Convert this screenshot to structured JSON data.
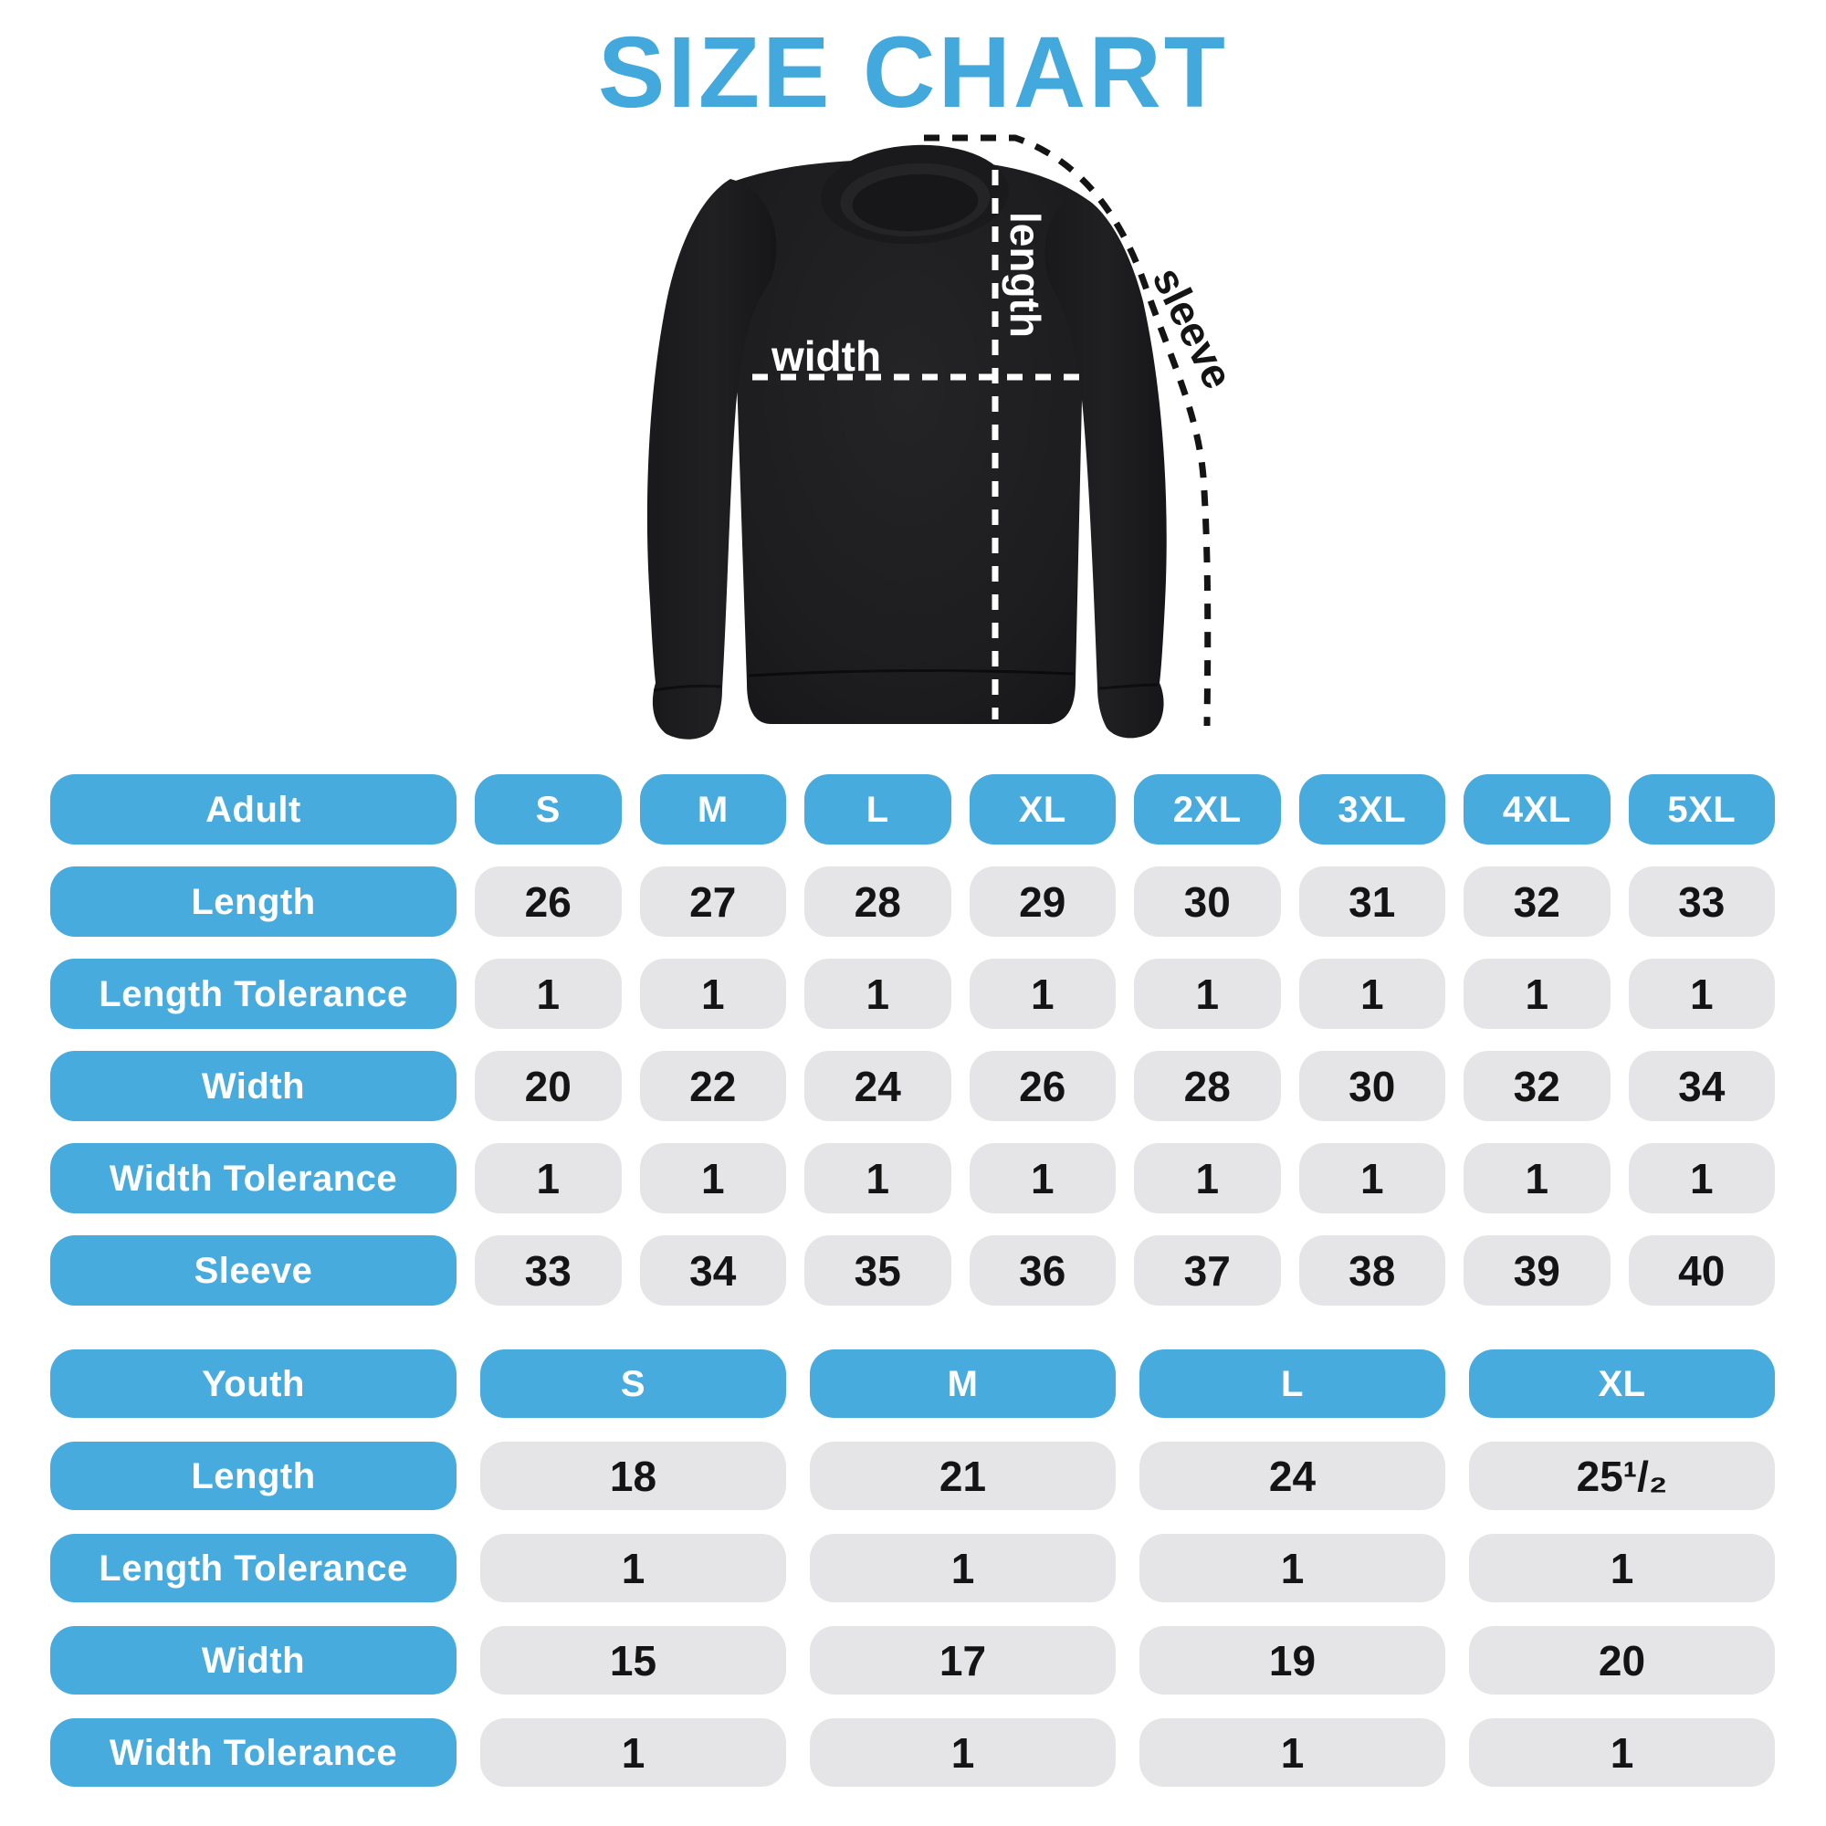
{
  "title": "SIZE CHART",
  "colors": {
    "blue": "#47ABDE",
    "title_blue": "#43A8DC",
    "gray": "#E5E5E7",
    "ink": "#141414",
    "garment_black": "#1D1D1F",
    "dash_white": "#FFFFFF",
    "dash_black": "#141414"
  },
  "garment": {
    "width_label": "width",
    "length_label": "length",
    "sleeve_label": "sleeve"
  },
  "tables": [
    {
      "id": "adult",
      "header": "Adult",
      "columns": [
        "S",
        "M",
        "L",
        "XL",
        "2XL",
        "3XL",
        "4XL",
        "5XL"
      ],
      "rows": [
        {
          "label": "Length",
          "values": [
            "26",
            "27",
            "28",
            "29",
            "30",
            "31",
            "32",
            "33"
          ]
        },
        {
          "label": "Length Tolerance",
          "values": [
            "1",
            "1",
            "1",
            "1",
            "1",
            "1",
            "1",
            "1"
          ]
        },
        {
          "label": "Width",
          "values": [
            "20",
            "22",
            "24",
            "26",
            "28",
            "30",
            "32",
            "34"
          ]
        },
        {
          "label": "Width Tolerance",
          "values": [
            "1",
            "1",
            "1",
            "1",
            "1",
            "1",
            "1",
            "1"
          ]
        },
        {
          "label": "Sleeve",
          "values": [
            "33",
            "34",
            "35",
            "36",
            "37",
            "38",
            "39",
            "40"
          ]
        }
      ]
    },
    {
      "id": "youth",
      "header": "Youth",
      "columns": [
        "S",
        "M",
        "L",
        "XL"
      ],
      "rows": [
        {
          "label": "Length",
          "values": [
            "18",
            "21",
            "24",
            "25¹/₂"
          ]
        },
        {
          "label": "Length Tolerance",
          "values": [
            "1",
            "1",
            "1",
            "1"
          ]
        },
        {
          "label": "Width",
          "values": [
            "15",
            "17",
            "19",
            "20"
          ]
        },
        {
          "label": "Width Tolerance",
          "values": [
            "1",
            "1",
            "1",
            "1"
          ]
        }
      ]
    }
  ]
}
